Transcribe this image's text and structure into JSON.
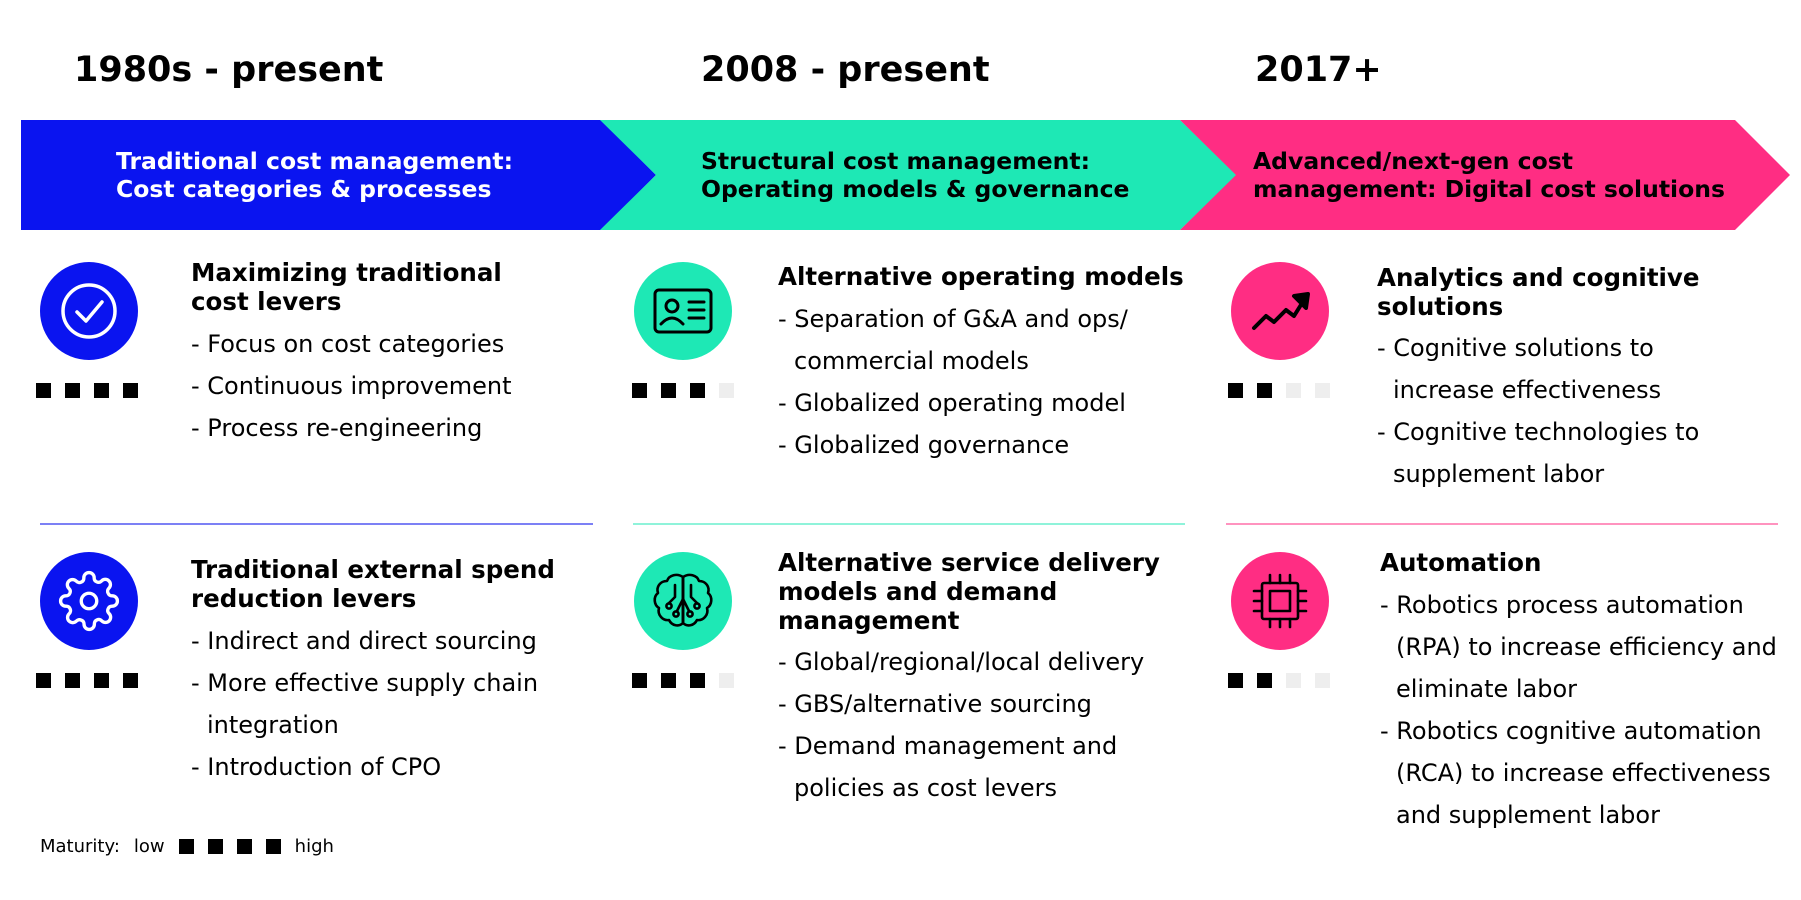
{
  "colors": {
    "blue": "#0a14f0",
    "teal": "#1ee8b5",
    "pink": "#ff2d83",
    "filled_square": "#000000",
    "empty_square": "#eeeeee"
  },
  "eras": [
    {
      "period": "1980s - present",
      "heading_line1": "Traditional cost management:",
      "heading_line2": "Cost categories & processes",
      "cards": [
        {
          "icon": "checkmark-circle-icon",
          "title": "Maximizing traditional cost levers",
          "maturity": 4,
          "items": [
            "Focus on cost categories",
            "Continuous improvement",
            "Process re-engineering"
          ]
        },
        {
          "icon": "gear-icon",
          "title": "Traditional external spend reduction levers",
          "maturity": 4,
          "items": [
            "Indirect and direct sourcing",
            "More effective supply chain integration",
            "Introduction of CPO"
          ]
        }
      ]
    },
    {
      "period": "2008 - present",
      "heading_line1": "Structural cost management:",
      "heading_line2": "Operating models & governance",
      "cards": [
        {
          "icon": "id-card-icon",
          "title": "Alternative operating models",
          "maturity": 3,
          "items": [
            "Separation of G&A and ops/ commercial models",
            "Globalized operating model",
            "Globalized governance"
          ]
        },
        {
          "icon": "brain-circuit-icon",
          "title": "Alternative service delivery models and demand management",
          "maturity": 3,
          "items": [
            "Global/regional/local delivery",
            "GBS/alternative sourcing",
            "Demand management and policies as cost levers"
          ]
        }
      ]
    },
    {
      "period": "2017+",
      "heading_line1": "Advanced/next-gen cost",
      "heading_line2": "management: Digital cost solutions",
      "cards": [
        {
          "icon": "trend-up-icon",
          "title": "Analytics and cognitive solutions",
          "maturity": 2,
          "items": [
            "Cognitive solutions to increase effectiveness",
            "Cognitive technologies to supplement labor"
          ]
        },
        {
          "icon": "chip-icon",
          "title": "Automation",
          "maturity": 2,
          "items": [
            "Robotics process automation (RPA) to increase efficiency and eliminate labor",
            "Robotics cognitive automation (RCA) to increase effectiveness and supplement labor"
          ]
        }
      ]
    }
  ],
  "legend": {
    "label": "Maturity:",
    "low": "low",
    "high": "high"
  }
}
